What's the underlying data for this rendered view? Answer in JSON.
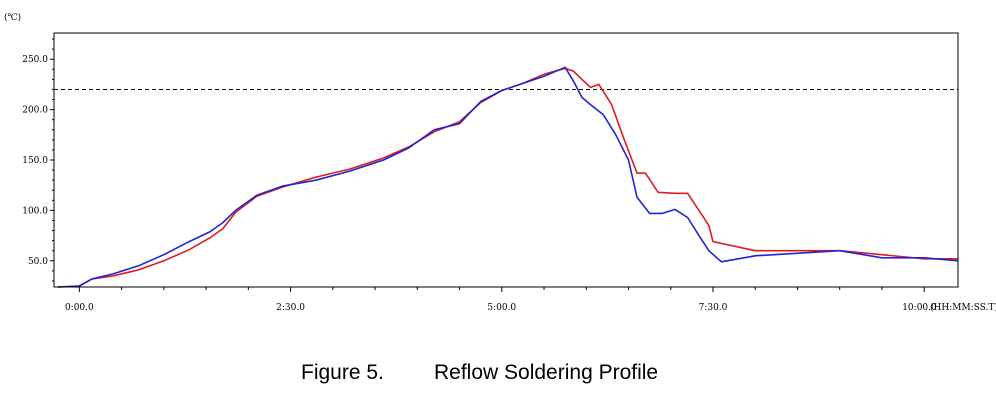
{
  "chart_data": {
    "type": "line",
    "title": "",
    "y_unit_label": "(℃)",
    "x_unit_label": "(HH:MM:SS.T)",
    "xlim": [
      -0.3,
      10.4
    ],
    "ylim": [
      24,
      276
    ],
    "x_ticks": [
      {
        "value": 0,
        "label": "0:00.0"
      },
      {
        "value": 2.5,
        "label": "2:30.0"
      },
      {
        "value": 5,
        "label": "5:00.0"
      },
      {
        "value": 7.5,
        "label": "7:30.0"
      },
      {
        "value": 10,
        "label": "10:00.0"
      }
    ],
    "y_ticks": [
      {
        "value": 50,
        "label": "50.0"
      },
      {
        "value": 100,
        "label": "100.0"
      },
      {
        "value": 150,
        "label": "150.0"
      },
      {
        "value": 200,
        "label": "200.0"
      },
      {
        "value": 250,
        "label": "250.0"
      }
    ],
    "reference_line": {
      "y": 220,
      "style": "dashed"
    },
    "series": [
      {
        "name": "red",
        "color": "#e01b1b",
        "x": [
          -0.25,
          0.0,
          0.15,
          0.4,
          0.7,
          1.0,
          1.3,
          1.55,
          1.7,
          1.85,
          2.1,
          2.4,
          2.8,
          3.2,
          3.6,
          3.9,
          4.2,
          4.5,
          4.75,
          5.0,
          5.25,
          5.5,
          5.75,
          5.85,
          5.95,
          6.05,
          6.15,
          6.3,
          6.45,
          6.6,
          6.7,
          6.85,
          7.05,
          7.2,
          7.35,
          7.45,
          7.5,
          8.0,
          9.0,
          9.5,
          10.0,
          10.4
        ],
        "values": [
          24,
          25,
          32,
          35,
          41,
          50,
          61,
          73,
          82,
          98,
          114,
          123,
          133,
          141,
          152,
          163,
          178,
          188,
          207,
          219,
          226,
          235,
          241,
          238,
          230,
          222,
          225,
          205,
          170,
          137,
          137,
          118,
          117,
          117,
          98,
          85,
          69,
          60,
          60,
          56,
          52,
          52
        ]
      },
      {
        "name": "blue",
        "color": "#1f25d6",
        "x": [
          -0.25,
          0.0,
          0.15,
          0.4,
          0.7,
          1.0,
          1.3,
          1.55,
          1.7,
          1.85,
          2.1,
          2.4,
          2.8,
          3.2,
          3.6,
          3.9,
          4.2,
          4.5,
          4.75,
          5.0,
          5.25,
          5.5,
          5.75,
          5.85,
          5.95,
          6.05,
          6.2,
          6.35,
          6.5,
          6.6,
          6.75,
          6.9,
          7.05,
          7.2,
          7.35,
          7.45,
          7.6,
          8.0,
          9.0,
          9.5,
          10.0,
          10.4
        ],
        "values": [
          24,
          25,
          32,
          37,
          45,
          56,
          69,
          79,
          88,
          100,
          115,
          124,
          130,
          139,
          150,
          162,
          180,
          186,
          208,
          219,
          226,
          233,
          242,
          228,
          212,
          205,
          195,
          175,
          150,
          113,
          97,
          97,
          101,
          93,
          73,
          60,
          49,
          55,
          60,
          53,
          53,
          50
        ]
      }
    ]
  },
  "caption": {
    "number": "Figure 5.",
    "title": "Reflow Soldering Profile"
  }
}
